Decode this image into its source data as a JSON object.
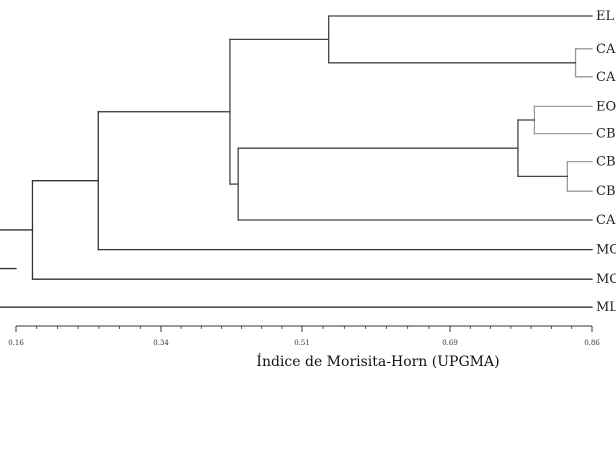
{
  "colors": {
    "upper_branches": "#444444",
    "lower_branches": "#333333",
    "sub_cluster_branches": "#9a9a9a",
    "axis": "#333333"
  },
  "dendrogram": {
    "method": "UPGMA",
    "leaves": [
      "EL",
      "CAO",
      "CAC",
      "EO",
      "CBC",
      "CBL",
      "CBO",
      "CAL",
      "MO",
      "MC",
      "ML"
    ],
    "merges": [
      {
        "members": [
          "CAO",
          "CAC"
        ],
        "height": 0.84
      },
      {
        "members": [
          "CBL",
          "CBO"
        ],
        "height": 0.83
      },
      {
        "members": [
          "EO",
          "CBC"
        ],
        "height": 0.79
      },
      {
        "members": [
          "EO",
          "CBC",
          "CBL",
          "CBO"
        ],
        "height": 0.77
      },
      {
        "members": [
          "EL",
          "CAO",
          "CAC"
        ],
        "height": 0.54
      },
      {
        "members": [
          "EO",
          "CBC",
          "CBL",
          "CBO",
          "CAL"
        ],
        "height": 0.43
      },
      {
        "members": [
          "EL",
          "CAO",
          "CAC",
          "EO",
          "CBC",
          "CBL",
          "CBO",
          "CAL"
        ],
        "height": 0.42
      },
      {
        "members": [
          "EL",
          "CAO",
          "CAC",
          "EO",
          "CBC",
          "CBL",
          "CBO",
          "CAL",
          "MO"
        ],
        "height": 0.26
      },
      {
        "members": [
          "EL",
          "CAO",
          "CAC",
          "EO",
          "CBC",
          "CBL",
          "CBO",
          "CAL",
          "MO",
          "MC"
        ],
        "height": 0.18
      },
      {
        "members": [
          "EL",
          "CAO",
          "CAC",
          "EO",
          "CBC",
          "CBL",
          "CBO",
          "CAL",
          "MO",
          "MC",
          "ML"
        ],
        "height": 0.13
      }
    ]
  },
  "axis": {
    "range": [
      0.16,
      0.86
    ],
    "tick_labels": [
      "0.16",
      "0.34",
      "0.51",
      "0.69",
      "0.86"
    ],
    "title": "Índice de Morisita-Horn (UPGMA)"
  }
}
